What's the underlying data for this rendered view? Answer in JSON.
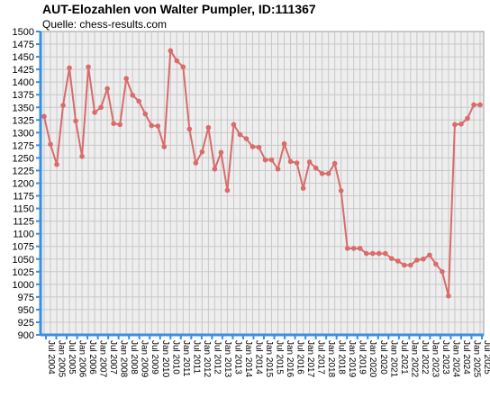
{
  "chart_data": {
    "type": "line",
    "title": "AUT-Elozahlen von Walter Pumpler, ID:111367",
    "subtitle": "Quelle: chess-results.com",
    "xlabel": "",
    "ylabel": "",
    "ylim": [
      900,
      1500
    ],
    "ytick_step": 25,
    "grid": true,
    "line_color": "#d96b6b",
    "axis_color": "#3b8fe0",
    "plot_bg": "#eeeeee",
    "grid_color": "#c8c8c8",
    "x_labels": [
      "Jul 2004",
      "Jan 2005",
      "Jul 2005",
      "Jan 2006",
      "Jul 2006",
      "Jan 2007",
      "Jul 2007",
      "Jan 2008",
      "Jul 2008",
      "Jan 2009",
      "Jul 2009",
      "Jan 2010",
      "Jul 2010",
      "Jan 2011",
      "Jul 2011",
      "Jan 2012",
      "Jul 2012",
      "Jan 2013",
      "Jul 2013",
      "Jan 2014",
      "Jul 2014",
      "Jan 2015",
      "Jul 2015",
      "Jan 2016",
      "Jul 2016",
      "Jan 2017",
      "Jul 2017",
      "Jan 2018",
      "Jul 2018",
      "Jan 2019",
      "Jul 2019",
      "Jan 2020",
      "Jul 2020",
      "Jan 2021",
      "Jul 2021",
      "Jan 2022",
      "Jul 2022",
      "Jan 2023",
      "Jul 2023",
      "Jan 2024",
      "Jul 2024",
      "Jan 2025",
      "Jul 2025"
    ],
    "series": [
      {
        "values": [
          1332,
          1277,
          1237,
          1354,
          1428,
          1323,
          1253,
          1430,
          1340,
          1350,
          1387,
          1318,
          1316,
          1407,
          1374,
          1362,
          1337,
          1314,
          1313,
          1272,
          1462,
          1442,
          1430,
          1307,
          1240,
          1262,
          1310,
          1228,
          1261,
          1186,
          1316,
          1296,
          1288,
          1272,
          1271,
          1246,
          1246,
          1228,
          1278,
          1243,
          1240,
          1190,
          1242,
          1230,
          1219,
          1219,
          1239,
          1185,
          1071,
          1071,
          1071,
          1061,
          1061,
          1061,
          1061,
          1051,
          1046,
          1038,
          1038,
          1048,
          1050,
          1058,
          1040,
          1025,
          977,
          1316,
          1317,
          1328,
          1355,
          1355
        ]
      }
    ]
  }
}
